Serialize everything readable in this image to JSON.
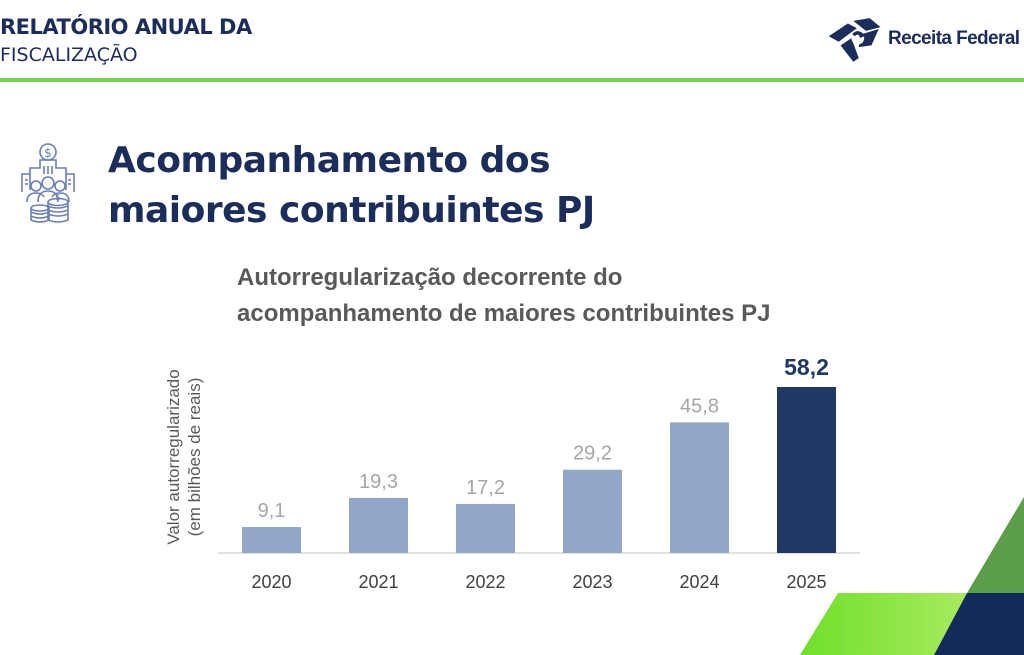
{
  "header": {
    "report_title_line1": "RELATÓRIO ANUAL DA",
    "report_title_line2": "FISCALIZAÇÃO",
    "logo_text": "Receita Federal",
    "accent_color": "#6fd34a"
  },
  "section": {
    "icon": "buildings-people-coins-icon",
    "title_line1": "Acompanhamento dos",
    "title_line2": "maiores contribuintes PJ"
  },
  "chart_data": {
    "type": "bar",
    "title": "Autorregularização decorrente do acompanhamento de maiores contribuintes PJ",
    "title_line1": "Autorregularização decorrente do",
    "title_line2": "acompanhamento de maiores contribuintes PJ",
    "xlabel": "",
    "ylabel": "Valor autorregularizado (em bilhões de reais)",
    "ylabel_line1": "Valor autorregularizado",
    "ylabel_line2": "(em bilhões de reais)",
    "categories": [
      "2020",
      "2021",
      "2022",
      "2023",
      "2024",
      "2025"
    ],
    "values": [
      9.1,
      19.3,
      17.2,
      29.2,
      45.8,
      58.2
    ],
    "data_labels": [
      "9,1",
      "19,3",
      "17,2",
      "29,2",
      "45,8",
      "58,2"
    ],
    "highlight_index": 5,
    "ylim": [
      0,
      58.2
    ],
    "grid": false,
    "colors": {
      "default": "#92a6c8",
      "highlight": "#1f3864",
      "label": "#a6a6a6",
      "highlight_label": "#1f3864"
    }
  }
}
